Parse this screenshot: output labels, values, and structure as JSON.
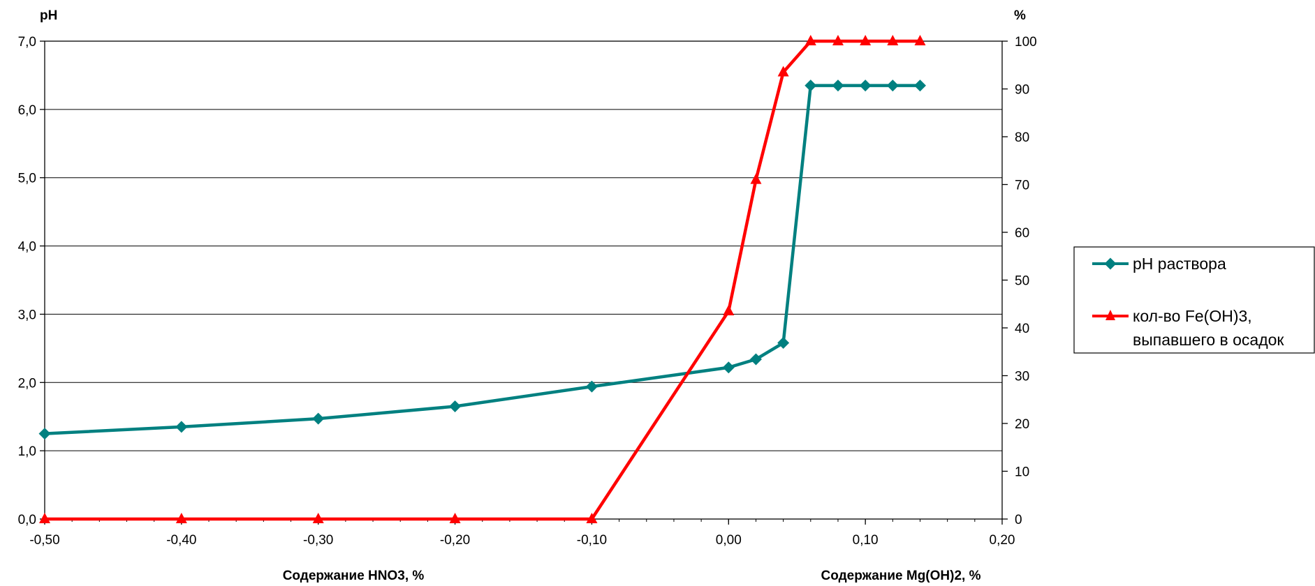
{
  "chart_data": {
    "type": "line",
    "left_axis": {
      "unit": "pH",
      "ylim": [
        0,
        7
      ],
      "ticks": [
        "0,0",
        "1,0",
        "2,0",
        "3,0",
        "4,0",
        "5,0",
        "6,0",
        "7,0"
      ]
    },
    "right_axis": {
      "unit": "%",
      "ylim": [
        0,
        100
      ],
      "ticks": [
        "0",
        "10",
        "20",
        "30",
        "40",
        "50",
        "60",
        "70",
        "80",
        "90",
        "100"
      ]
    },
    "x_axis": {
      "xlim": [
        -0.5,
        0.2
      ],
      "ticks": [
        "-0,50",
        "-0,40",
        "-0,30",
        "-0,20",
        "-0,10",
        "0,00",
        "0,10",
        "0,20"
      ]
    },
    "xlabel_left": "Содержание HNO3, %",
    "xlabel_right": "Содержание Mg(OH)2, %",
    "grid": true,
    "legend_position": "right",
    "series": [
      {
        "name": "pH раствора",
        "axis": "left",
        "color": "#008080",
        "marker": "diamond",
        "x": [
          -0.5,
          -0.4,
          -0.3,
          -0.2,
          -0.1,
          0.0,
          0.02,
          0.04,
          0.06,
          0.08,
          0.1,
          0.12,
          0.14
        ],
        "y": [
          1.25,
          1.35,
          1.47,
          1.65,
          1.94,
          2.22,
          2.34,
          2.58,
          6.35,
          6.35,
          6.35,
          6.35,
          6.35
        ]
      },
      {
        "name": "кол-во Fe(OH)3, выпавшего в осадок",
        "legend_lines": [
          "кол-во Fe(OH)3,",
          "выпавшего в осадок"
        ],
        "axis": "right",
        "color": "#ff0000",
        "marker": "triangle",
        "x": [
          -0.5,
          -0.4,
          -0.3,
          -0.2,
          -0.1,
          0.0,
          0.02,
          0.04,
          0.06,
          0.08,
          0.1,
          0.12,
          0.14
        ],
        "y": [
          0,
          0,
          0,
          0,
          0,
          43.5,
          71,
          93.5,
          100,
          100,
          100,
          100,
          100
        ]
      }
    ]
  }
}
